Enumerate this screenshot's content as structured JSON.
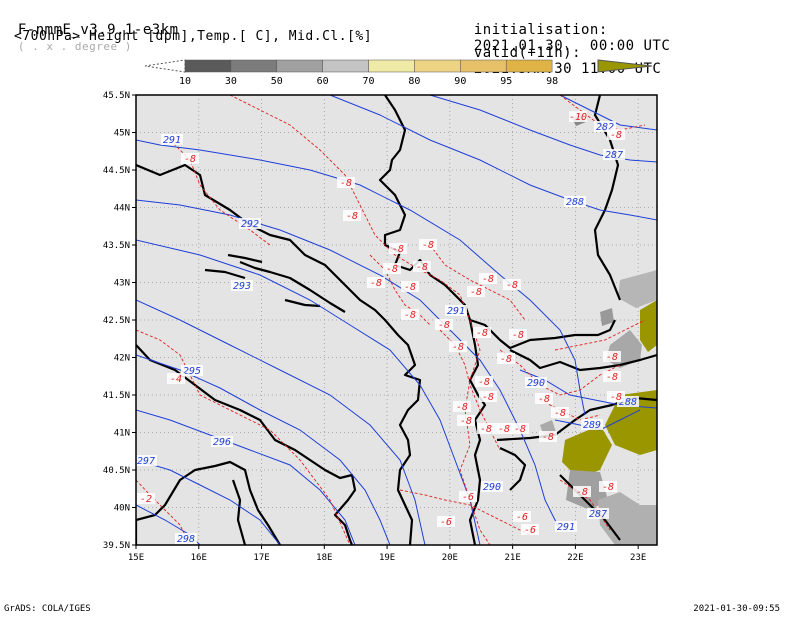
{
  "header": {
    "model": "F-nmmE_v3.9.1-e3km",
    "resolution": "( . x . degree )",
    "init_label": "initialisation:",
    "init_value": "2021.01.30.  00:00 UTC",
    "fields": "<700hPa> Height [dpm],Temp.[ C], Mid.Cl.[%]",
    "valid_label": "valid(+11h):",
    "valid_value": "2021.JAN.30 11:00 UTC"
  },
  "colorbar": {
    "labels": [
      "10",
      "30",
      "50",
      "60",
      "70",
      "80",
      "90",
      "95",
      "98"
    ],
    "colors": [
      "#5a5a5a",
      "#7c7c7c",
      "#a0a0a0",
      "#c4c4c4",
      "#efeaa5",
      "#ecd484",
      "#e6c169",
      "#e0b346",
      "#9a9600"
    ]
  },
  "map": {
    "lat_labels": [
      "45.5N",
      "45N",
      "44.5N",
      "44N",
      "43.5N",
      "43N",
      "42.5N",
      "42N",
      "41.5N",
      "41N",
      "40.5N",
      "40N",
      "39.5N"
    ],
    "lon_labels": [
      "15E",
      "16E",
      "17E",
      "18E",
      "19E",
      "20E",
      "21E",
      "22E",
      "23E"
    ],
    "lat_range": [
      39.5,
      45.5
    ],
    "lon_range": [
      15,
      23.3
    ],
    "height_contours": [
      "287",
      "288",
      "291",
      "292",
      "293",
      "295",
      "296",
      "297",
      "298"
    ],
    "height_labels": [
      "291",
      "292",
      "293",
      "295",
      "296",
      "297",
      "298",
      "288",
      "287",
      "282",
      "291",
      "290",
      "289",
      "288",
      "290",
      "291",
      "287"
    ],
    "temp_labels": [
      "-8",
      "-8",
      "-8",
      "-8",
      "-8",
      "-8",
      "-8",
      "-8",
      "-8",
      "-8",
      "-8",
      "-8",
      "-8",
      "-8",
      "-8",
      "-8",
      "-8",
      "-8",
      "-8",
      "-8",
      "-8",
      "-8",
      "-8",
      "-8",
      "-8",
      "-8",
      "-8",
      "-8",
      "-8",
      "-8",
      "-8",
      "-8",
      "-8",
      "-6",
      "-6",
      "-6",
      "-6",
      "-4",
      "-2",
      "-10",
      "-8"
    ],
    "colors": {
      "background": "#e4e4e4",
      "height": "#1f3fd8",
      "temp": "#e02020",
      "coast": "#000000",
      "cloud_high": "#9a9600",
      "cloud_mid": "#a0a0a0"
    }
  },
  "footer": {
    "left": "GrADS: COLA/IGES",
    "right": "2021-01-30-09:55"
  }
}
